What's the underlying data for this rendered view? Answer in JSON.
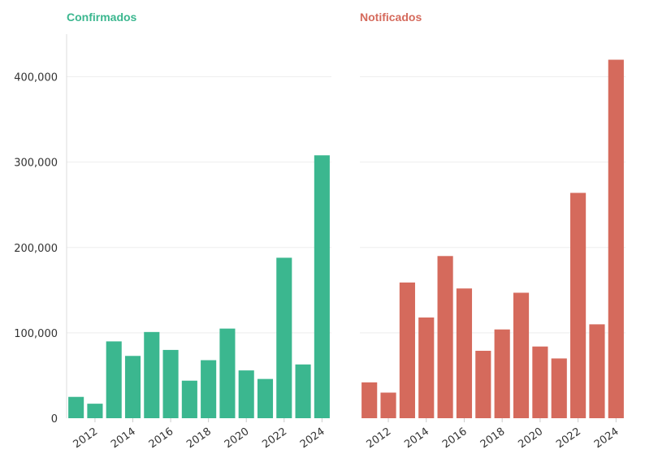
{
  "chart_data": [
    {
      "type": "bar",
      "title": "Confirmados",
      "color": "#3bb78f",
      "categories": [
        "2011",
        "2012",
        "2013",
        "2014",
        "2015",
        "2016",
        "2017",
        "2018",
        "2019",
        "2020",
        "2021",
        "2022",
        "2023",
        "2024"
      ],
      "values": [
        25000,
        17000,
        90000,
        73000,
        101000,
        80000,
        44000,
        68000,
        105000,
        56000,
        46000,
        188000,
        63000,
        308000
      ],
      "x_tick_labels": [
        "2012",
        "2014",
        "2016",
        "2018",
        "2020",
        "2022",
        "2024"
      ],
      "y_tick_labels": [
        "0",
        "100,000",
        "200,000",
        "300,000",
        "400,000"
      ],
      "ylim": [
        0,
        450000
      ],
      "grid": true,
      "xlabel": "",
      "ylabel": ""
    },
    {
      "type": "bar",
      "title": "Notificados",
      "color": "#d56a5c",
      "categories": [
        "2011",
        "2012",
        "2013",
        "2014",
        "2015",
        "2016",
        "2017",
        "2018",
        "2019",
        "2020",
        "2021",
        "2022",
        "2023",
        "2024"
      ],
      "values": [
        42000,
        30000,
        159000,
        118000,
        190000,
        152000,
        79000,
        104000,
        147000,
        84000,
        70000,
        264000,
        110000,
        420000
      ],
      "x_tick_labels": [
        "2012",
        "2014",
        "2016",
        "2018",
        "2020",
        "2022",
        "2024"
      ],
      "ylim": [
        0,
        450000
      ],
      "grid": true,
      "xlabel": "",
      "ylabel": ""
    }
  ]
}
